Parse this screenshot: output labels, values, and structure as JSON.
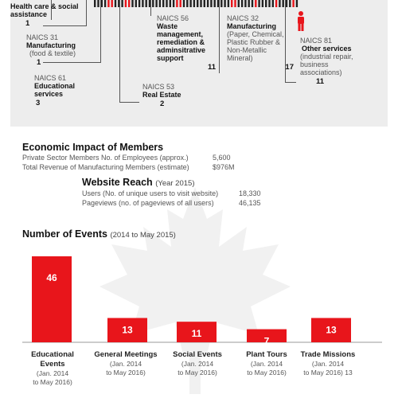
{
  "naics_blocks": {
    "health": {
      "name": "Health care & social assistance",
      "count": "1"
    },
    "n31": {
      "code": "NAICS 31",
      "name": "Manufacturing",
      "desc": "(food & textile)",
      "count": "1"
    },
    "n61": {
      "code": "NAICS 61",
      "name": "Educational services",
      "count": "3"
    },
    "n53": {
      "code": "NAICS 53",
      "name": "Real Estate",
      "count": "2"
    },
    "n56": {
      "code": "NAICS 56",
      "name": "Waste management, remediation & adminsitrative support",
      "count": "11"
    },
    "n32": {
      "code": "NAICS 32",
      "name": "Manufacturing",
      "desc": "(Paper, Chemical, Plastic Rubber & Non-Metallic Mineral)",
      "count": "17"
    },
    "n81": {
      "code": "NAICS 81",
      "name": "Other services",
      "desc": "(industrial repair, business associations)",
      "count": "11"
    }
  },
  "economic_impact": {
    "title": "Economic Impact of Members",
    "rows": [
      {
        "label": "Private Sector Members No. of Employees (approx.)",
        "value": "5,600"
      },
      {
        "label": "Total Revenue of Manufacturing Members (estimate)",
        "value": "$976M"
      }
    ]
  },
  "website_reach": {
    "title": "Website Reach",
    "subtitle": "(Year 2015)",
    "rows": [
      {
        "label": "Users (No. of unique users to visit website)",
        "value": "18,330"
      },
      {
        "label": "Pageviews (no. of pageviews of all users)",
        "value": "46,135"
      }
    ]
  },
  "colors": {
    "accent": "#e8151b",
    "dark": "#222222",
    "panel": "#ededed"
  },
  "chart_data": {
    "type": "bar",
    "title": "Number of Events",
    "subtitle": "(2014 to May 2015)",
    "categories": [
      "Educational Events",
      "General Meetings",
      "Social Events",
      "Plant Tours",
      "Trade Missions"
    ],
    "category_notes": [
      "(Jan. 2014 to May 2016)",
      "(Jan. 2014 to May 2016)",
      "(Jan. 2014 to May 2016)",
      "(Jan. 2014 to May 2016)",
      "(Jan. 2014 to May 2016) 13"
    ],
    "values": [
      46,
      13,
      11,
      7,
      13
    ],
    "ylim": [
      0,
      46
    ],
    "grid": false
  }
}
